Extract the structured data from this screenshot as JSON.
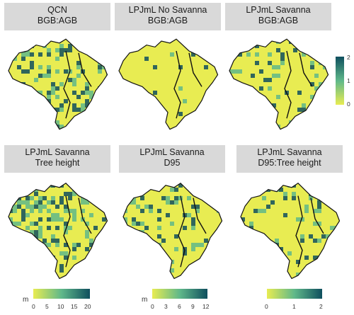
{
  "panels": [
    {
      "id": "p1",
      "title_line1": "QCN",
      "title_line2": "BGB:AGB",
      "intensity": 0.45
    },
    {
      "id": "p2",
      "title_line1": "LPJmL No Savanna",
      "title_line2": "BGB:AGB",
      "intensity": 0.05
    },
    {
      "id": "p3",
      "title_line1": "LPJmL Savanna",
      "title_line2": "BGB:AGB",
      "intensity": 0.25
    },
    {
      "id": "p4",
      "title_line1": "LPJmL Savanna",
      "title_line2": "Tree height",
      "intensity": 0.8
    },
    {
      "id": "p5",
      "title_line1": "LPJmL Savanna",
      "title_line2": "D95",
      "intensity": 0.55
    },
    {
      "id": "p6",
      "title_line1": "LPJmL Savanna",
      "title_line2": "D95:Tree height",
      "intensity": 0.3
    }
  ],
  "legend_top": {
    "ticks": [
      "2",
      "1",
      "0"
    ]
  },
  "legend_height": {
    "unit": "m",
    "ticks": [
      "0",
      "5",
      "10",
      "15",
      "20"
    ]
  },
  "legend_d95": {
    "unit": "m",
    "ticks": [
      "0",
      "3",
      "6",
      "9",
      "12"
    ]
  },
  "legend_ratio": {
    "ticks": [
      "0",
      "1",
      "2"
    ]
  },
  "colors": {
    "low": "#e8ec52",
    "mid": "#5fb88a",
    "high": "#0f4f5e",
    "strip": "#d9d9d9"
  }
}
